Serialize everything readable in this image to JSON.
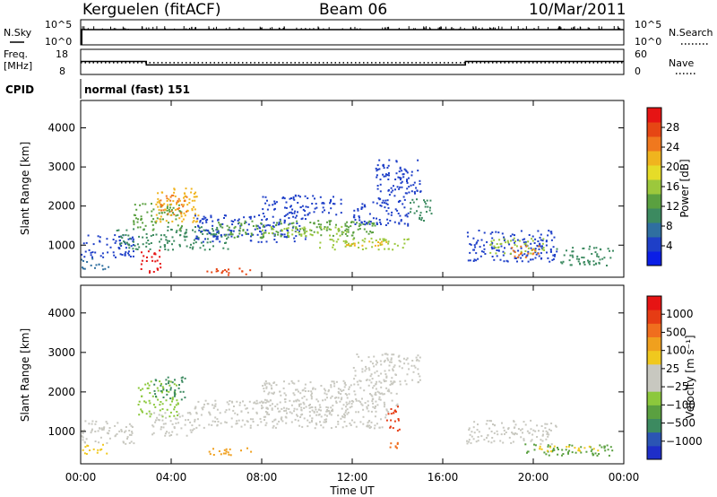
{
  "header": {
    "station": "Kerguelen (fitACF)",
    "beam": "Beam 06",
    "date": "10/Mar/2011"
  },
  "sky_panel": {
    "left_label": "N.Sky",
    "right_label": "N.Search",
    "left_ticks": [
      "10^5",
      "10^0"
    ],
    "right_ticks": [
      "10^5",
      "10^0"
    ]
  },
  "freq_panel": {
    "left_label_line1": "Freq.",
    "left_label_line2": "[MHz]",
    "left_ticks": [
      "18",
      "8"
    ],
    "right_ticks": [
      "60",
      "0"
    ],
    "right_label": "Nave"
  },
  "cpid": {
    "label": "CPID",
    "value": "normal (fast) 151"
  },
  "time_axis": {
    "label": "Time UT",
    "ticks": [
      "00:00",
      "04:00",
      "08:00",
      "12:00",
      "16:00",
      "20:00",
      "00:00"
    ]
  },
  "chart_data": [
    {
      "type": "heatmap",
      "name": "power-panel",
      "ylabel": "Slant Range [km]",
      "yticks": [
        1000,
        2000,
        3000,
        4000
      ],
      "ylim": [
        180,
        4700
      ],
      "xlim_hours": [
        0,
        24
      ],
      "colorbar": {
        "label": "Power [dB]",
        "ticks": [
          "4",
          "8",
          "12",
          "16",
          "20",
          "24",
          "28"
        ],
        "colors": [
          "#0a1ee6",
          "#1e3fc8",
          "#2f6fa0",
          "#3c8a60",
          "#5aa040",
          "#9cc83c",
          "#e6dc28",
          "#f0b41e",
          "#f0781e",
          "#e64614",
          "#e61414"
        ]
      },
      "regions": [
        {
          "t": [
            0.0,
            2.4
          ],
          "r": [
            700,
            1300
          ],
          "color": "#1e3fc8"
        },
        {
          "t": [
            0.0,
            1.2
          ],
          "r": [
            400,
            700
          ],
          "color": "#2f6fa0"
        },
        {
          "t": [
            1.5,
            6.5
          ],
          "r": [
            900,
            1500
          ],
          "color": "#3c8a60"
        },
        {
          "t": [
            2.3,
            4.5
          ],
          "r": [
            1400,
            2100
          ],
          "color": "#5aa040"
        },
        {
          "t": [
            3.3,
            5.2
          ],
          "r": [
            1600,
            2500
          ],
          "color": "#f0b41e"
        },
        {
          "t": [
            3.5,
            4.7
          ],
          "r": [
            1800,
            2300
          ],
          "color": "#f0781e"
        },
        {
          "t": [
            2.6,
            3.5
          ],
          "r": [
            300,
            900
          ],
          "color": "#e61414"
        },
        {
          "t": [
            5.5,
            7.5
          ],
          "r": [
            250,
            450
          ],
          "color": "#e64614"
        },
        {
          "t": [
            5.0,
            10.0
          ],
          "r": [
            1100,
            1800
          ],
          "color": "#1e3fc8"
        },
        {
          "t": [
            6.0,
            13.0
          ],
          "r": [
            1200,
            1650
          ],
          "color": "#5aa040"
        },
        {
          "t": [
            8.0,
            12.0
          ],
          "r": [
            1250,
            1500
          ],
          "color": "#9cc83c"
        },
        {
          "t": [
            10.5,
            14.5
          ],
          "r": [
            900,
            1200
          ],
          "color": "#9cc83c"
        },
        {
          "t": [
            11.5,
            13.5
          ],
          "r": [
            1000,
            1150
          ],
          "color": "#f0b41e"
        },
        {
          "t": [
            12.0,
            14.5
          ],
          "r": [
            1500,
            2200
          ],
          "color": "#1e3fc8"
        },
        {
          "t": [
            13.0,
            15.0
          ],
          "r": [
            2200,
            3200
          ],
          "color": "#1e3fc8"
        },
        {
          "t": [
            14.5,
            15.5
          ],
          "r": [
            1600,
            2200
          ],
          "color": "#3c8a60"
        },
        {
          "t": [
            8.0,
            11.5
          ],
          "r": [
            1800,
            2300
          ],
          "color": "#1e3fc8"
        },
        {
          "t": [
            17.0,
            21.0
          ],
          "r": [
            600,
            1400
          ],
          "color": "#1e3fc8"
        },
        {
          "t": [
            18.0,
            20.5
          ],
          "r": [
            800,
            1200
          ],
          "color": "#9cc83c"
        },
        {
          "t": [
            19.0,
            20.3
          ],
          "r": [
            700,
            1000
          ],
          "color": "#f0781e"
        },
        {
          "t": [
            21.0,
            23.5
          ],
          "r": [
            500,
            1000
          ],
          "color": "#3c8a60"
        }
      ]
    },
    {
      "type": "heatmap",
      "name": "velocity-panel",
      "ylabel": "Slant Range [km]",
      "yticks": [
        1000,
        2000,
        3000,
        4000
      ],
      "ylim": [
        180,
        4700
      ],
      "xlim_hours": [
        0,
        24
      ],
      "colorbar": {
        "label": "Velocity [m s⁻¹]",
        "ticks": [
          "1000",
          "500",
          "100",
          "25",
          "−25",
          "−100",
          "−500",
          "−1000"
        ],
        "colors": [
          "#1e2ec8",
          "#2b55b4",
          "#3c8a60",
          "#5aa040",
          "#8cc83c",
          "#c8c8c0",
          "#c8c8c0",
          "#f0c81e",
          "#f0a01e",
          "#f06e1e",
          "#e63c14",
          "#e61414"
        ]
      },
      "regions": [
        {
          "t": [
            0.0,
            2.4
          ],
          "r": [
            700,
            1300
          ],
          "color": "#c8c8c0"
        },
        {
          "t": [
            0.0,
            1.2
          ],
          "r": [
            450,
            700
          ],
          "color": "#f0c81e"
        },
        {
          "t": [
            2.5,
            4.3
          ],
          "r": [
            1400,
            2300
          ],
          "color": "#8cc83c"
        },
        {
          "t": [
            3.2,
            4.6
          ],
          "r": [
            1800,
            2400
          ],
          "color": "#3c8a60"
        },
        {
          "t": [
            3.0,
            5.0
          ],
          "r": [
            900,
            1500
          ],
          "color": "#c8c8c0"
        },
        {
          "t": [
            5.0,
            13.5
          ],
          "r": [
            1100,
            1800
          ],
          "color": "#c8c8c0"
        },
        {
          "t": [
            8.0,
            14.0
          ],
          "r": [
            1500,
            2300
          ],
          "color": "#c8c8c0"
        },
        {
          "t": [
            12.0,
            15.0
          ],
          "r": [
            2200,
            3000
          ],
          "color": "#c8c8c0"
        },
        {
          "t": [
            13.5,
            14.1
          ],
          "r": [
            1000,
            1700
          ],
          "color": "#e63c14"
        },
        {
          "t": [
            13.6,
            14.1
          ],
          "r": [
            600,
            900
          ],
          "color": "#f06e1e"
        },
        {
          "t": [
            5.5,
            7.5
          ],
          "r": [
            400,
            600
          ],
          "color": "#f0a01e"
        },
        {
          "t": [
            17.0,
            21.0
          ],
          "r": [
            700,
            1300
          ],
          "color": "#c8c8c0"
        },
        {
          "t": [
            19.5,
            23.5
          ],
          "r": [
            400,
            700
          ],
          "color": "#5aa040"
        },
        {
          "t": [
            20.0,
            23.0
          ],
          "r": [
            500,
            650
          ],
          "color": "#f0c81e"
        }
      ]
    },
    {
      "type": "line",
      "name": "frequency-panel",
      "ylim": [
        8,
        18
      ],
      "x_hours": [
        0,
        2.9,
        2.9,
        17.0,
        17.0,
        24.0
      ],
      "values": [
        13.2,
        13.2,
        11.8,
        11.8,
        13.2,
        13.2
      ],
      "dotted_nave_level": 12.7
    }
  ]
}
